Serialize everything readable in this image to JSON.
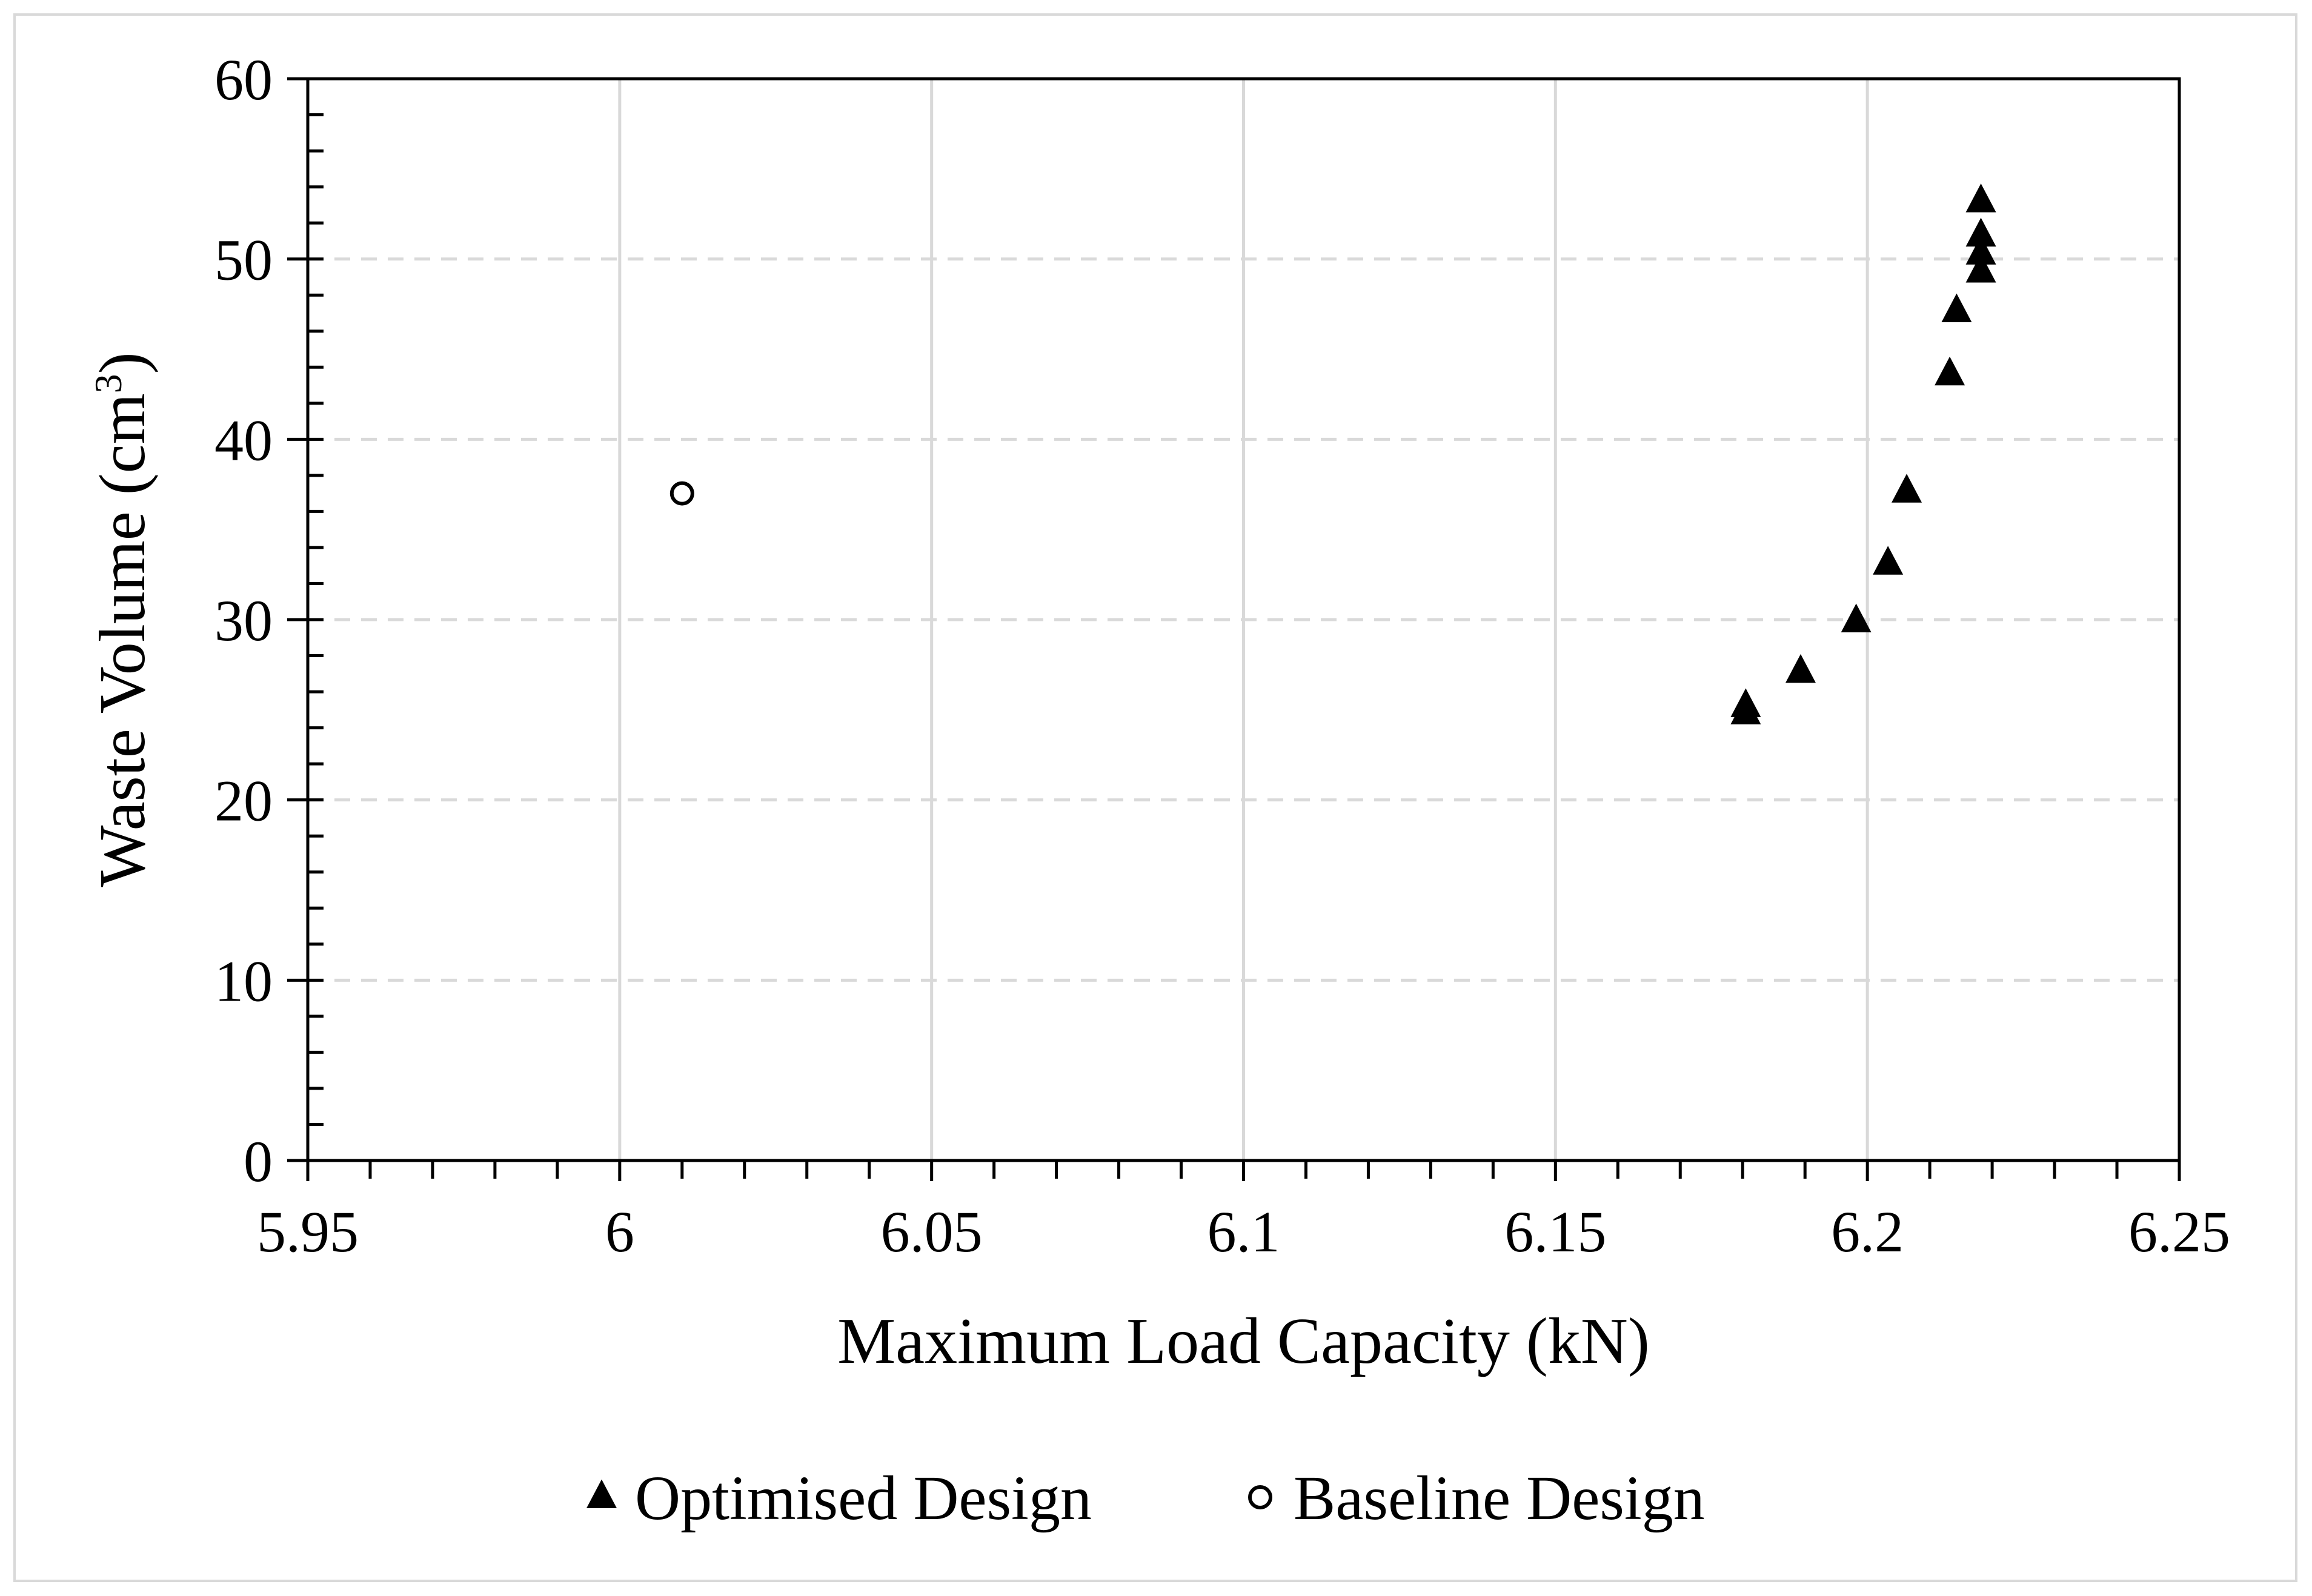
{
  "chart_data": {
    "type": "scatter",
    "title": "",
    "xlabel": "Maximum Load Capacity (kN)",
    "ylabel_main": "Waste Volume (cm",
    "ylabel_sup": "3",
    "ylabel_close": ")",
    "xlim": [
      5.95,
      6.25
    ],
    "ylim": [
      0,
      60
    ],
    "xticks": [
      5.95,
      6.0,
      6.05,
      6.1,
      6.15,
      6.2,
      6.25
    ],
    "xtick_labels": [
      "5.95",
      "6",
      "6.05",
      "6.1",
      "6.15",
      "6.2",
      "6.25"
    ],
    "yticks": [
      0,
      10,
      20,
      30,
      40,
      50,
      60
    ],
    "ytick_labels": [
      "0",
      "10",
      "20",
      "30",
      "40",
      "50",
      "60"
    ],
    "x_minor_step": 0.01,
    "y_minor_step": 2,
    "vertical_grid": true,
    "horizontal_grid": "dashed",
    "legend_position": "bottom-center",
    "series": [
      {
        "name": "Optimised Design",
        "marker": "filled-triangle",
        "color": "#000000",
        "points": [
          {
            "x": 6.1805,
            "y": 24.8
          },
          {
            "x": 6.1805,
            "y": 25.2
          },
          {
            "x": 6.1893,
            "y": 27.1
          },
          {
            "x": 6.1982,
            "y": 29.9
          },
          {
            "x": 6.2033,
            "y": 33.1
          },
          {
            "x": 6.2063,
            "y": 37.1
          },
          {
            "x": 6.2132,
            "y": 43.6
          },
          {
            "x": 6.2143,
            "y": 47.1
          },
          {
            "x": 6.2182,
            "y": 49.3
          },
          {
            "x": 6.2182,
            "y": 50.3
          },
          {
            "x": 6.2182,
            "y": 51.3
          },
          {
            "x": 6.2182,
            "y": 53.2
          }
        ]
      },
      {
        "name": "Baseline Design",
        "marker": "hollow-circle",
        "color": "#000000",
        "points": [
          {
            "x": 6.01,
            "y": 37.0
          }
        ]
      }
    ]
  }
}
